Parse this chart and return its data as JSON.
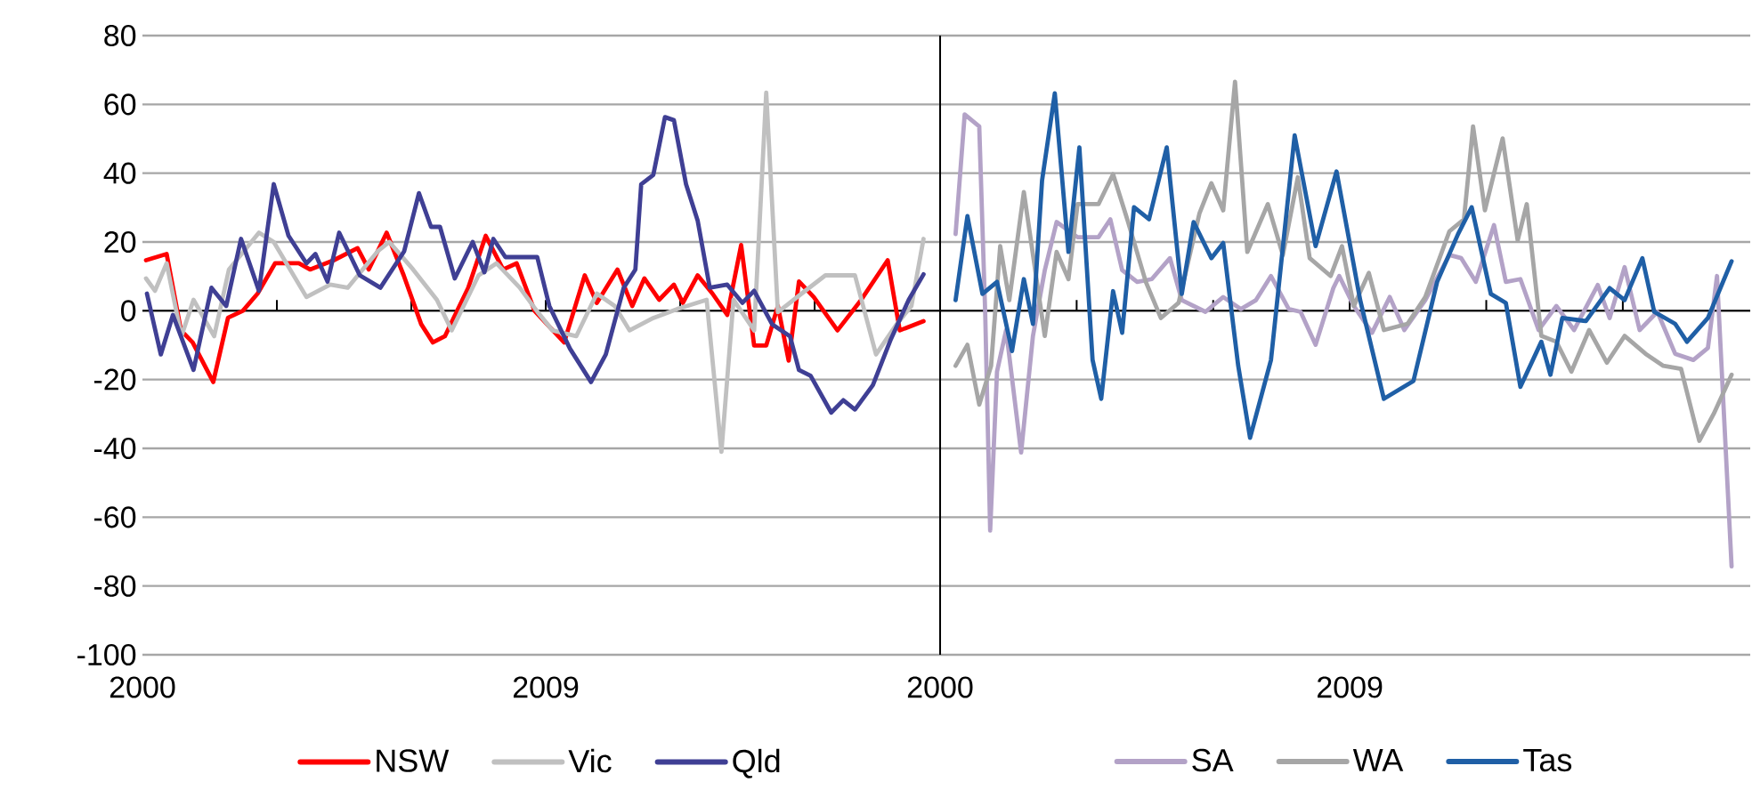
{
  "chart_data": [
    {
      "type": "line",
      "xlim": [
        2000,
        2017.8
      ],
      "xticks": [
        2000,
        {
          "value": 2003,
          "label": null
        },
        {
          "value": 2006,
          "label": null
        },
        2009,
        {
          "value": 2012,
          "label": null
        },
        {
          "value": 2015,
          "label": null
        }
      ],
      "ylim": [
        -100,
        80
      ],
      "yticks": [
        -100,
        -80,
        -60,
        -40,
        -20,
        0,
        20,
        40,
        60,
        80
      ],
      "grid": "y",
      "legend": "bottom",
      "series": [
        {
          "name": "NSW",
          "color": "#ff0000",
          "x": [
            2000.08,
            2000.54,
            2000.86,
            2001.12,
            2001.58,
            2001.91,
            2002.24,
            2002.57,
            2002.96,
            2003.49,
            2003.74,
            2004.27,
            2004.8,
            2005.05,
            2005.45,
            2005.83,
            2006.22,
            2006.48,
            2006.75,
            2007.27,
            2007.66,
            2008.05,
            2008.35,
            2008.75,
            2009.41,
            2009.87,
            2010.14,
            2010.6,
            2010.93,
            2011.2,
            2011.53,
            2011.86,
            2012.06,
            2012.39,
            2012.72,
            2013.05,
            2013.36,
            2013.65,
            2013.92,
            2014.18,
            2014.42,
            2014.65,
            2014.98,
            2015.51,
            2016.04,
            2016.63,
            2016.9,
            2017.43
          ],
          "values": [
            14.7,
            16.5,
            -5.7,
            -9.2,
            -20.7,
            -2,
            0,
            5,
            13.8,
            13.8,
            12,
            14.7,
            18.2,
            12,
            22.7,
            10.3,
            -3.9,
            -9.2,
            -7.4,
            6.7,
            21.8,
            12,
            13.8,
            0,
            -9.2,
            10.3,
            2.3,
            12,
            1.4,
            9.4,
            3.2,
            7.6,
            2.3,
            10.3,
            5,
            -1.2,
            19.1,
            -10.1,
            -10.1,
            1.4,
            -14.5,
            8.5,
            4,
            -5.7,
            3.2,
            14.7,
            -5.7,
            -3
          ]
        },
        {
          "name": "Vic",
          "color": "#c0c0c0",
          "x": [
            2000.08,
            2000.28,
            2000.54,
            2000.87,
            2001.14,
            2001.6,
            2001.93,
            2002.6,
            2002.93,
            2003.66,
            2004.19,
            2004.58,
            2005.25,
            2005.51,
            2006.04,
            2006.57,
            2006.9,
            2007.5,
            2007.9,
            2008.42,
            2008.82,
            2009.15,
            2009.68,
            2010.14,
            2010.54,
            2010.87,
            2011.4,
            2011.93,
            2012.59,
            2012.92,
            2013.19,
            2013.65,
            2013.92,
            2014.18,
            2014.71,
            2015.24,
            2015.9,
            2016.37,
            2016.83,
            2017.16,
            2017.43
          ],
          "values": [
            9.4,
            5.8,
            13.8,
            -7.4,
            3.2,
            -7.4,
            12,
            22.7,
            20,
            4,
            7.6,
            6.7,
            17.3,
            20,
            12,
            3.2,
            -5.7,
            10.3,
            13.8,
            6.7,
            -0.4,
            -5.7,
            -7.4,
            5,
            1.4,
            -5.7,
            -2.1,
            0.5,
            3.2,
            -41,
            3.2,
            -5.7,
            63.4,
            -0.4,
            5,
            10.3,
            10.3,
            -12.7,
            -3.9,
            1.4,
            20.9
          ]
        },
        {
          "name": "Qld",
          "color": "#3f3f94",
          "x": [
            2000.1,
            2000.41,
            2000.68,
            2001.14,
            2001.54,
            2001.87,
            2002.2,
            2002.6,
            2002.93,
            2003.26,
            2003.66,
            2003.86,
            2004.13,
            2004.39,
            2004.85,
            2005.31,
            2005.84,
            2006.17,
            2006.44,
            2006.64,
            2006.97,
            2007.37,
            2007.63,
            2007.83,
            2008.1,
            2008.56,
            2008.81,
            2009.08,
            2009.54,
            2010.01,
            2010.34,
            2010.74,
            2011,
            2011.13,
            2011.4,
            2011.66,
            2011.86,
            2012.13,
            2012.39,
            2012.66,
            2013.05,
            2013.39,
            2013.65,
            2014.05,
            2014.45,
            2014.65,
            2014.91,
            2015.37,
            2015.64,
            2015.9,
            2016.3,
            2016.7,
            2017.1,
            2017.43
          ],
          "values": [
            5,
            -12.7,
            -1.2,
            -17.2,
            6.7,
            1.4,
            20.9,
            5.8,
            36.8,
            21.8,
            13.8,
            16.5,
            8.5,
            22.7,
            10.3,
            6.7,
            17.3,
            34.2,
            24.4,
            24.4,
            9.4,
            20,
            11.2,
            20.9,
            15.6,
            15.6,
            15.6,
            1.4,
            -11,
            -20.7,
            -12.7,
            6.7,
            12,
            36.8,
            39.5,
            56.3,
            55.4,
            36.8,
            26.2,
            6.7,
            7.6,
            2.3,
            5.8,
            -3.9,
            -7.4,
            -17.2,
            -18.9,
            -29.6,
            -26,
            -28.7,
            -21.6,
            -8.3,
            3.2,
            10.6
          ]
        }
      ]
    },
    {
      "type": "line",
      "xlim": [
        2000,
        2017.8
      ],
      "xticks": [
        2000,
        {
          "value": 2003,
          "label": null
        },
        {
          "value": 2006,
          "label": null
        },
        2009,
        {
          "value": 2012,
          "label": null
        },
        {
          "value": 2015,
          "label": null
        }
      ],
      "ylim": [
        -100,
        80
      ],
      "yticks": [
        -100,
        -80,
        -60,
        -40,
        -20,
        0,
        20,
        40,
        60,
        80
      ],
      "grid": "y",
      "legend": "bottom",
      "tick_labels": "x",
      "series": [
        {
          "name": "SA",
          "color": "#b3a2c7",
          "x": [
            2000.34,
            2000.54,
            2000.86,
            2000.99,
            2001.1,
            2001.25,
            2001.45,
            2001.78,
            2002.04,
            2002.3,
            2002.56,
            2003.02,
            2003.48,
            2003.74,
            2004,
            2004.33,
            2004.65,
            2005.05,
            2005.31,
            2005.83,
            2006.22,
            2006.61,
            2006.94,
            2007.27,
            2007.66,
            2007.92,
            2008.25,
            2008.64,
            2008.77,
            2009.09,
            2009.49,
            2009.88,
            2010.2,
            2010.66,
            2011.19,
            2011.45,
            2011.77,
            2012.17,
            2012.43,
            2012.75,
            2013.15,
            2013.54,
            2013.93,
            2014.45,
            2014.71,
            2015.04,
            2015.37,
            2015.76,
            2016.15,
            2016.55,
            2016.87,
            2017.07,
            2017.39
          ],
          "values": [
            22.3,
            57.1,
            53.6,
            -0.3,
            -63.9,
            -17.7,
            -5.6,
            -41.2,
            -7.3,
            11.8,
            25.8,
            21.4,
            21.4,
            26.6,
            11.8,
            8.4,
            9.2,
            15.3,
            3.1,
            -0.3,
            4,
            0.5,
            3.1,
            10.1,
            0.5,
            -0.3,
            -9.9,
            6.6,
            10.1,
            1.4,
            -6.4,
            4,
            -5.6,
            3.1,
            16.2,
            15.3,
            8.4,
            24.9,
            8.4,
            9.2,
            -5.6,
            1.4,
            -5.6,
            7.5,
            -2.1,
            12.7,
            -5.6,
            -0.3,
            -12.5,
            -14.3,
            -10.8,
            10.1,
            -74.3
          ]
        },
        {
          "name": "WA",
          "color": "#a6a6a6",
          "x": [
            2000.34,
            2000.6,
            2000.86,
            2001.12,
            2001.32,
            2001.52,
            2001.84,
            2002.3,
            2002.56,
            2002.82,
            2003.02,
            2003.48,
            2003.8,
            2004.13,
            2004.52,
            2004.85,
            2005.24,
            2005.7,
            2005.96,
            2006.22,
            2006.48,
            2006.75,
            2007.2,
            2007.53,
            2007.86,
            2008.12,
            2008.58,
            2008.83,
            2009.09,
            2009.42,
            2009.75,
            2010.27,
            2010.66,
            2011.19,
            2011.51,
            2011.71,
            2011.97,
            2012.36,
            2012.69,
            2012.89,
            2013.21,
            2013.54,
            2013.87,
            2014.26,
            2014.65,
            2015.04,
            2015.5,
            2015.89,
            2016.28,
            2016.68,
            2017,
            2017.39
          ],
          "values": [
            -16,
            -9.9,
            -27.3,
            -16,
            18.8,
            3.1,
            34.5,
            -7.3,
            17.1,
            9.2,
            31,
            31,
            39.7,
            25.8,
            8.4,
            -2.1,
            2.3,
            28.4,
            37.1,
            29.2,
            66.6,
            17.1,
            31,
            16.2,
            38.8,
            15.3,
            10.1,
            18.8,
            1.4,
            11,
            -5.6,
            -3.8,
            4,
            23.1,
            26.6,
            53.6,
            29.2,
            50.1,
            20.5,
            31,
            -7.3,
            -9,
            -17.7,
            -5.6,
            -15.1,
            -7.3,
            -12.5,
            -16,
            -16.9,
            -37.8,
            -29.9,
            -18.6
          ]
        },
        {
          "name": "Tas",
          "color": "#1f5fa6",
          "x": [
            2000.34,
            2000.6,
            2000.93,
            2001.25,
            2001.58,
            2001.84,
            2002.04,
            2002.24,
            2002.52,
            2002.82,
            2003.06,
            2003.35,
            2003.54,
            2003.8,
            2004,
            2004.26,
            2004.59,
            2004.98,
            2005.31,
            2005.57,
            2005.96,
            2006.22,
            2006.55,
            2006.81,
            2007.27,
            2007.79,
            2008.25,
            2008.71,
            2009.23,
            2009.75,
            2010.4,
            2010.92,
            2011.38,
            2011.68,
            2012.1,
            2012.43,
            2012.75,
            2013.21,
            2013.41,
            2013.67,
            2014.19,
            2014.71,
            2015.04,
            2015.43,
            2015.69,
            2016.15,
            2016.41,
            2016.87,
            2017.39
          ],
          "values": [
            3.1,
            27.5,
            4.9,
            8.4,
            -11.7,
            9.2,
            -3.8,
            37.9,
            63.2,
            17.1,
            47.5,
            -14.3,
            -25.6,
            5.7,
            -6.4,
            30.1,
            26.6,
            47.5,
            4.9,
            25.8,
            15.3,
            19.7,
            -16,
            -36.9,
            -14.3,
            51,
            18.8,
            40.5,
            3.1,
            -25.6,
            -20.4,
            8.4,
            22.3,
            30.1,
            4.9,
            2.3,
            -22.1,
            -9,
            -18.6,
            -2.1,
            -3,
            6.6,
            3.1,
            15.3,
            -0.3,
            -3.8,
            -9,
            -2.1,
            14.4
          ]
        }
      ]
    }
  ]
}
